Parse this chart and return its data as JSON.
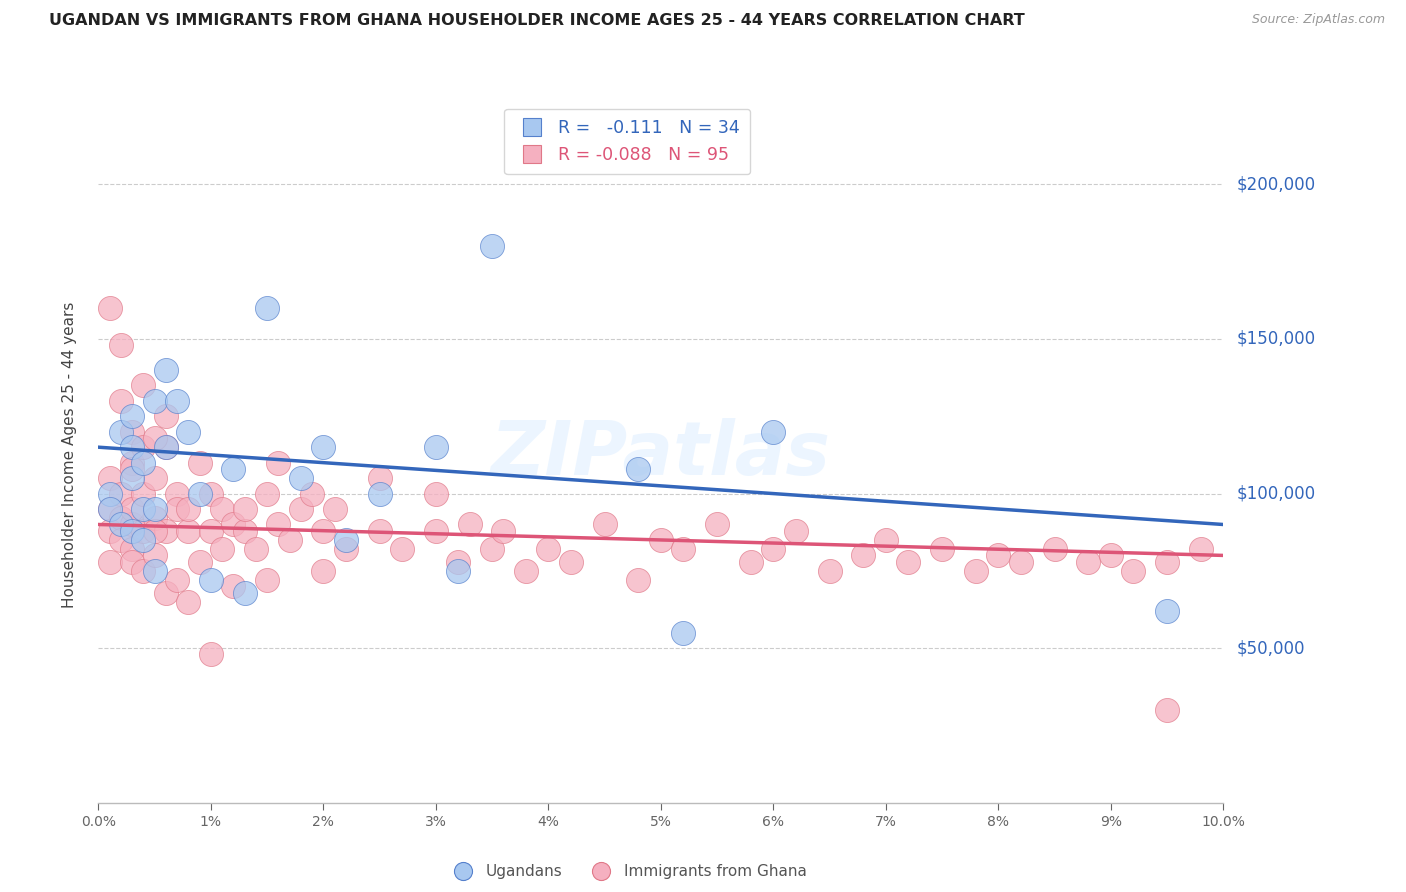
{
  "title": "UGANDAN VS IMMIGRANTS FROM GHANA HOUSEHOLDER INCOME AGES 25 - 44 YEARS CORRELATION CHART",
  "source": "Source: ZipAtlas.com",
  "ylabel": "Householder Income Ages 25 - 44 years",
  "ytick_values": [
    50000,
    100000,
    150000,
    200000
  ],
  "ytick_labels": [
    "$50,000",
    "$100,000",
    "$150,000",
    "$200,000"
  ],
  "xlim": [
    0.0,
    0.1
  ],
  "ylim": [
    0,
    225000
  ],
  "blue_fill": "#A8C8F0",
  "blue_edge": "#5580CC",
  "blue_line": "#3366BB",
  "pink_fill": "#F5B0C0",
  "pink_edge": "#E07888",
  "pink_line": "#DD5577",
  "watermark": "ZIPatlas",
  "blue_intercept": 115000,
  "blue_slope": -250000,
  "pink_intercept": 90000,
  "pink_slope": -100000,
  "ugandan_x": [
    0.001,
    0.001,
    0.002,
    0.002,
    0.003,
    0.003,
    0.003,
    0.004,
    0.004,
    0.005,
    0.005,
    0.006,
    0.006,
    0.007,
    0.008,
    0.009,
    0.01,
    0.012,
    0.013,
    0.015,
    0.018,
    0.02,
    0.022,
    0.025,
    0.03,
    0.032,
    0.035,
    0.048,
    0.052,
    0.06,
    0.003,
    0.004,
    0.005,
    0.095
  ],
  "ugandan_y": [
    100000,
    95000,
    120000,
    90000,
    105000,
    115000,
    125000,
    110000,
    95000,
    130000,
    75000,
    140000,
    115000,
    130000,
    120000,
    100000,
    72000,
    108000,
    68000,
    160000,
    105000,
    115000,
    85000,
    100000,
    115000,
    75000,
    180000,
    108000,
    55000,
    120000,
    88000,
    85000,
    95000,
    62000
  ],
  "ghana_x": [
    0.001,
    0.001,
    0.001,
    0.001,
    0.002,
    0.002,
    0.002,
    0.003,
    0.003,
    0.003,
    0.003,
    0.003,
    0.004,
    0.004,
    0.004,
    0.005,
    0.005,
    0.005,
    0.006,
    0.006,
    0.007,
    0.007,
    0.008,
    0.008,
    0.009,
    0.009,
    0.01,
    0.01,
    0.011,
    0.011,
    0.012,
    0.012,
    0.013,
    0.013,
    0.014,
    0.015,
    0.015,
    0.016,
    0.016,
    0.017,
    0.018,
    0.019,
    0.02,
    0.02,
    0.021,
    0.022,
    0.025,
    0.025,
    0.027,
    0.03,
    0.03,
    0.032,
    0.033,
    0.035,
    0.036,
    0.038,
    0.04,
    0.042,
    0.045,
    0.048,
    0.05,
    0.052,
    0.055,
    0.058,
    0.06,
    0.062,
    0.065,
    0.068,
    0.07,
    0.072,
    0.075,
    0.078,
    0.08,
    0.082,
    0.085,
    0.088,
    0.09,
    0.092,
    0.095,
    0.098,
    0.001,
    0.002,
    0.002,
    0.003,
    0.003,
    0.004,
    0.004,
    0.005,
    0.005,
    0.006,
    0.006,
    0.007,
    0.008,
    0.01,
    0.095
  ],
  "ghana_y": [
    95000,
    88000,
    78000,
    105000,
    92000,
    85000,
    100000,
    110000,
    90000,
    82000,
    95000,
    78000,
    100000,
    88000,
    75000,
    105000,
    92000,
    80000,
    115000,
    88000,
    100000,
    95000,
    88000,
    95000,
    110000,
    78000,
    100000,
    88000,
    95000,
    82000,
    90000,
    70000,
    88000,
    95000,
    82000,
    100000,
    72000,
    110000,
    90000,
    85000,
    95000,
    100000,
    88000,
    75000,
    95000,
    82000,
    105000,
    88000,
    82000,
    100000,
    88000,
    78000,
    90000,
    82000,
    88000,
    75000,
    82000,
    78000,
    90000,
    72000,
    85000,
    82000,
    90000,
    78000,
    82000,
    88000,
    75000,
    80000,
    85000,
    78000,
    82000,
    75000,
    80000,
    78000,
    82000,
    78000,
    80000,
    75000,
    78000,
    82000,
    160000,
    130000,
    148000,
    120000,
    108000,
    115000,
    135000,
    118000,
    88000,
    125000,
    68000,
    72000,
    65000,
    48000,
    30000
  ]
}
